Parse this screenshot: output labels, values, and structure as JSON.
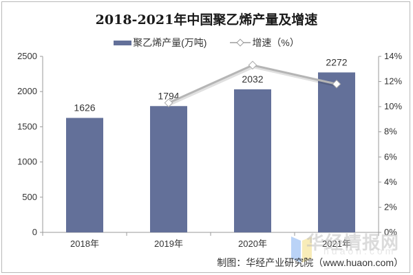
{
  "chart_data": {
    "type": "bar+line",
    "title": "2018-2021年中国聚乙烯产量及增速",
    "categories": [
      "2018年",
      "2019年",
      "2020年",
      "2021年"
    ],
    "series": [
      {
        "name": "聚乙烯产量(万吨)",
        "type": "bar",
        "axis": "left",
        "color": "#637099",
        "values": [
          1626,
          1794,
          2032,
          2272
        ],
        "labels": [
          "1626",
          "1794",
          "2032",
          "2272"
        ]
      },
      {
        "name": "增速（%）",
        "type": "line",
        "axis": "right",
        "color": "#b5b5b5",
        "values": [
          null,
          10.3,
          13.3,
          11.8
        ]
      }
    ],
    "y_left": {
      "min": 0,
      "max": 2500,
      "ticks": [
        "0",
        "500",
        "1000",
        "1500",
        "2000",
        "2500"
      ]
    },
    "y_right": {
      "min": 0,
      "max": 14,
      "ticks": [
        "0%",
        "2%",
        "4%",
        "6%",
        "8%",
        "10%",
        "12%",
        "14%"
      ]
    },
    "grid": false,
    "legend_position": "top"
  },
  "title": "2018-2021年中国聚乙烯产量及增速",
  "legend": {
    "bar": "聚乙烯产量(万吨)",
    "line": "增速（%）"
  },
  "credit": "制图：华经产业研究院（www.huaon.com）",
  "watermark": {
    "text": "华经情报网",
    "sub": "huaon.com"
  }
}
